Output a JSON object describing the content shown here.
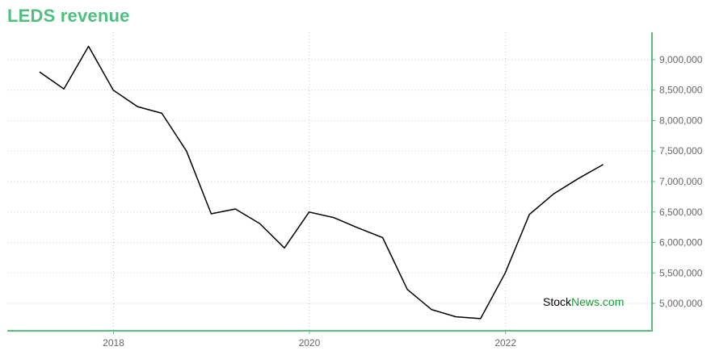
{
  "title": "LEDS revenue",
  "watermark": {
    "part1": "Stock",
    "part2": "News",
    "part3": ".com"
  },
  "colors": {
    "title": "#4fbf7f",
    "axis": "#5dbb82",
    "grid": "#a8d8c0",
    "line": "#000000",
    "brand": "#1a9a3a"
  },
  "chart_data": {
    "type": "line",
    "title": "LEDS revenue",
    "xlabel": "",
    "ylabel": "",
    "grid": true,
    "y_axis_side": "right",
    "x_ticks": [
      "2018",
      "2020",
      "2022"
    ],
    "y_ticks": [
      "5,000,000",
      "5,500,000",
      "6,000,000",
      "6,500,000",
      "7,000,000",
      "7,500,000",
      "8,000,000",
      "8,500,000",
      "9,000,000"
    ],
    "ylim": [
      4550000,
      9450000
    ],
    "xlim": [
      "2016-12",
      "2023-07"
    ],
    "series": [
      {
        "x": [
          "2017-03-31",
          "2017-06-30",
          "2017-09-30",
          "2017-12-31",
          "2018-03-31",
          "2018-06-30",
          "2018-09-30",
          "2018-12-31",
          "2019-03-31",
          "2019-06-30",
          "2019-09-30",
          "2019-12-31",
          "2020-03-31",
          "2020-06-30",
          "2020-09-30",
          "2020-12-31",
          "2021-03-31",
          "2021-06-30",
          "2021-09-30",
          "2021-12-31",
          "2022-03-31",
          "2022-06-30",
          "2022-09-30",
          "2022-12-31"
        ],
        "values": [
          8800000,
          8520000,
          9220000,
          8500000,
          8230000,
          8120000,
          7500000,
          6470000,
          6550000,
          6310000,
          5910000,
          6500000,
          6410000,
          6240000,
          6080000,
          5230000,
          4900000,
          4780000,
          4750000,
          5500000,
          6460000,
          6800000,
          7050000,
          7280000
        ]
      }
    ]
  }
}
